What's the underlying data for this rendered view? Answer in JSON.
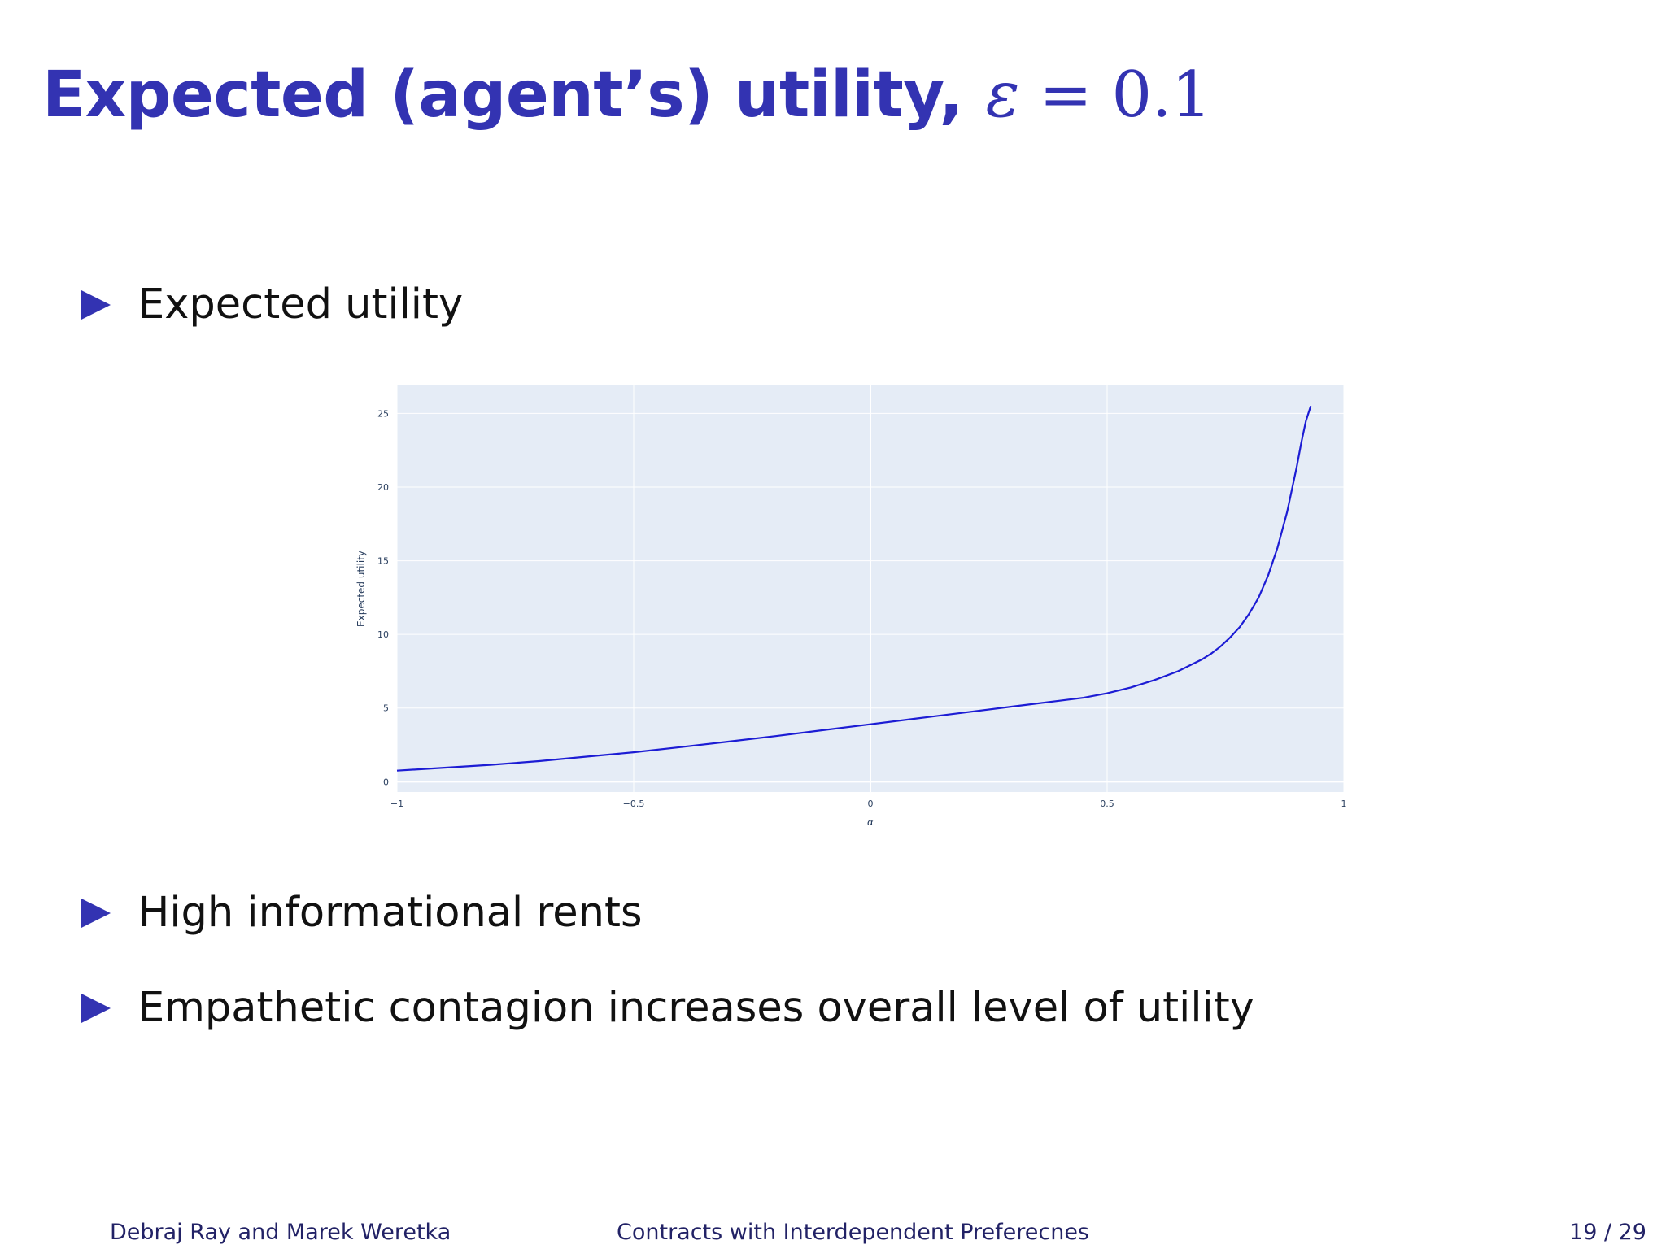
{
  "slide": {
    "title_text": "Expected (agent’s) utility,",
    "title_math_symbol": "ε",
    "title_math_rest": " = 0.1",
    "title_color": "#3333b2",
    "bullets": [
      "Expected utility",
      "High informational rents",
      "Empathetic contagion increases overall level of utility"
    ],
    "bullet_icon": "triangle-right-icon"
  },
  "footer": {
    "authors": "Debraj Ray and Marek Weretka",
    "talk_title": "Contracts with Interdependent Preferecnes",
    "page": "19 / 29"
  },
  "chart_data": {
    "type": "line",
    "xlabel": "α",
    "ylabel": "Expected utility",
    "xlim": [
      -1,
      1
    ],
    "ylim": [
      -0.7,
      26.9
    ],
    "x_ticks": [
      -1,
      -0.5,
      0,
      0.5,
      1
    ],
    "x_tick_labels": [
      "−1",
      "−0.5",
      "0",
      "0.5",
      "1"
    ],
    "y_ticks": [
      0,
      5,
      10,
      15,
      20,
      25
    ],
    "y_tick_labels": [
      "0",
      "5",
      "10",
      "15",
      "20",
      "25"
    ],
    "grid": true,
    "plot_bg": "#e5ecf6",
    "line_color": "#1c1cd4",
    "series": [
      {
        "x": [
          -1,
          -0.9,
          -0.8,
          -0.7,
          -0.6,
          -0.5,
          -0.4,
          -0.3,
          -0.2,
          -0.1,
          0,
          0.1,
          0.2,
          0.3,
          0.4,
          0.45,
          0.5,
          0.55,
          0.6,
          0.65,
          0.7,
          0.72,
          0.74,
          0.76,
          0.78,
          0.8,
          0.82,
          0.84,
          0.86,
          0.88,
          0.9,
          0.91,
          0.92,
          0.93
        ],
        "y": [
          0.75,
          0.95,
          1.15,
          1.4,
          1.7,
          2.0,
          2.35,
          2.72,
          3.1,
          3.5,
          3.9,
          4.3,
          4.7,
          5.1,
          5.5,
          5.7,
          6.0,
          6.4,
          6.9,
          7.5,
          8.3,
          8.7,
          9.2,
          9.8,
          10.5,
          11.4,
          12.5,
          14.0,
          15.9,
          18.3,
          21.3,
          23.0,
          24.5,
          25.5
        ]
      }
    ]
  }
}
